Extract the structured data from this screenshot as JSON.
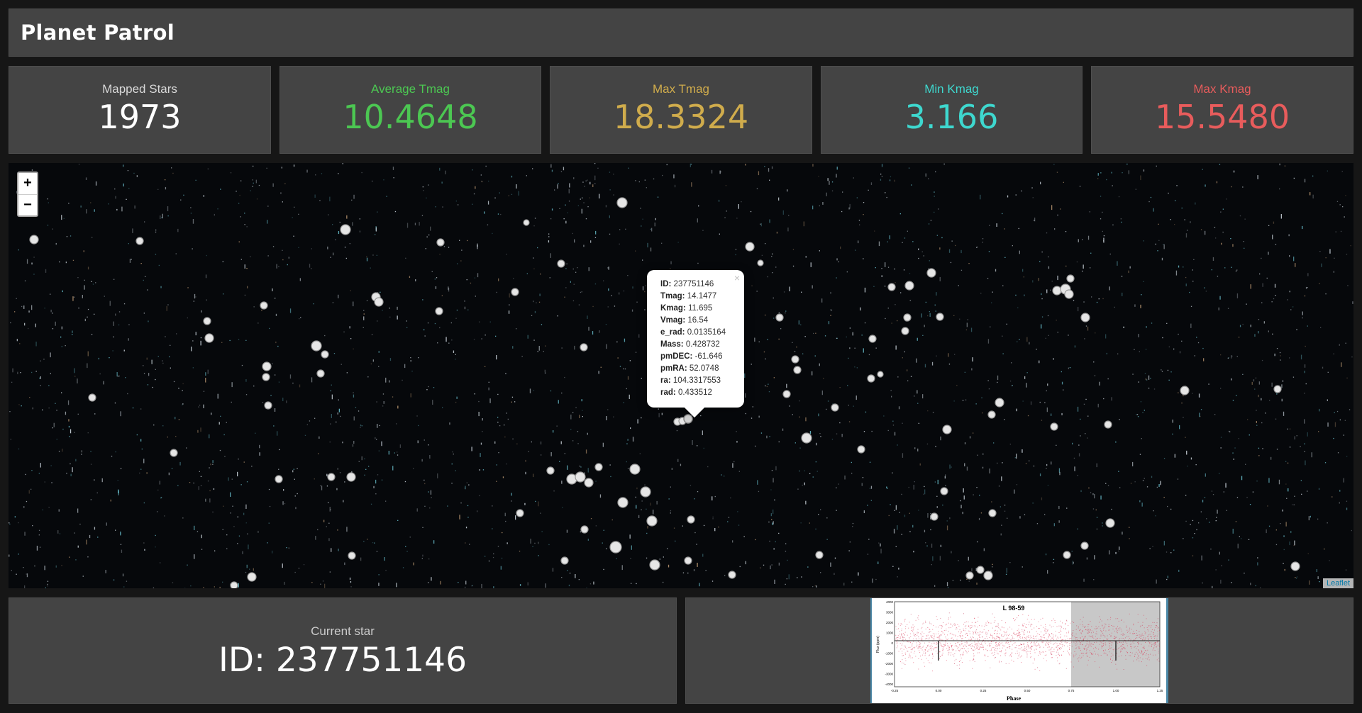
{
  "app": {
    "title": "Planet Patrol"
  },
  "stats": [
    {
      "label": "Mapped Stars",
      "value": "1973",
      "color": "#ffffff"
    },
    {
      "label": "Average Tmag",
      "value": "10.4648",
      "color": "#4cc752"
    },
    {
      "label": "Max Tmag",
      "value": "18.3324",
      "color": "#d0ac4c"
    },
    {
      "label": "Min Kmag",
      "value": "3.166",
      "color": "#3ed8cf"
    },
    {
      "label": "Max Kmag",
      "value": "15.5480",
      "color": "#e85c5c"
    }
  ],
  "map": {
    "zoom_in": "+",
    "zoom_out": "−",
    "attribution": "Leaflet"
  },
  "popup": {
    "close": "×",
    "fields": [
      {
        "key": "ID:",
        "value": "237751146"
      },
      {
        "key": "Tmag:",
        "value": "14.1477"
      },
      {
        "key": "Kmag:",
        "value": "11.695"
      },
      {
        "key": "Vmag:",
        "value": "16.54"
      },
      {
        "key": "e_rad:",
        "value": "0.0135164"
      },
      {
        "key": "Mass:",
        "value": "0.428732"
      },
      {
        "key": "pmDEC:",
        "value": "-61.646"
      },
      {
        "key": "pmRA:",
        "value": "52.0748"
      },
      {
        "key": "ra:",
        "value": "104.3317553"
      },
      {
        "key": "rad:",
        "value": "0.433512"
      }
    ]
  },
  "current_star": {
    "label": "Current star",
    "value": "ID: 237751146"
  },
  "light_curve": {
    "title": "L 98-59",
    "xlabel": "Phase",
    "ylabel": "Flux (ppm)",
    "x_ticks": [
      "-0.25",
      "0.00",
      "0.25",
      "0.50",
      "0.75",
      "1.00",
      "1.25"
    ],
    "y_ticks": [
      "4000",
      "3000",
      "2000",
      "1000",
      "0",
      "-1000",
      "-2000",
      "-3000",
      "-4000"
    ]
  }
}
